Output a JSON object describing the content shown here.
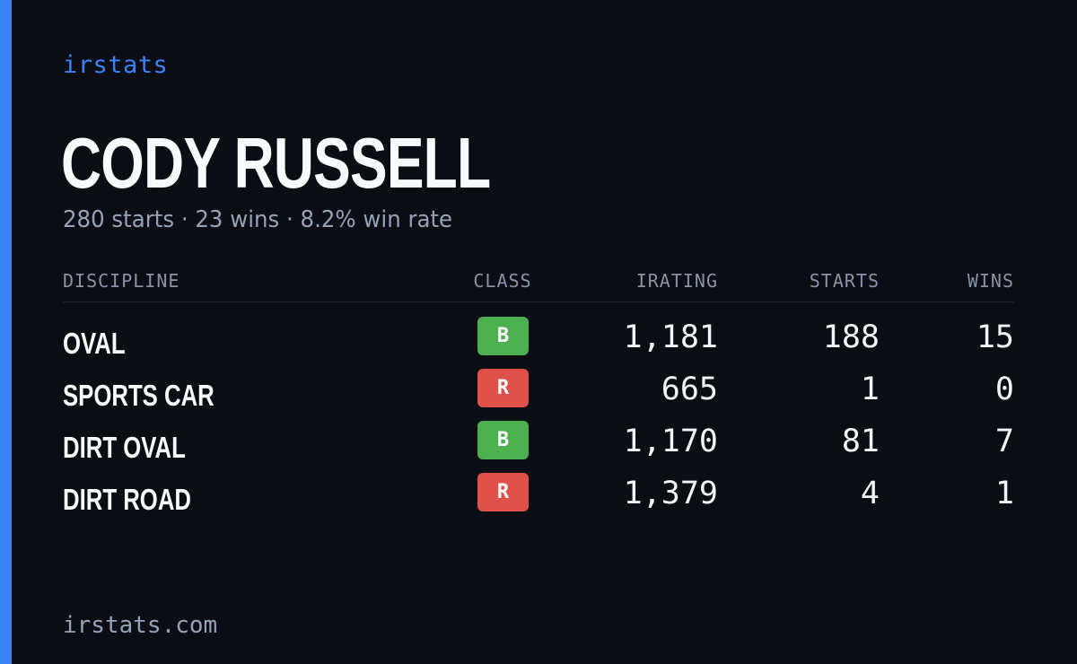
{
  "brand": "irstats",
  "driver": {
    "name": "CODY RUSSELL",
    "summary": "280 starts · 23 wins · 8.2% win rate"
  },
  "table": {
    "headers": {
      "discipline": "DISCIPLINE",
      "class": "CLASS",
      "irating": "IRATING",
      "starts": "STARTS",
      "wins": "WINS"
    },
    "rows": [
      {
        "discipline": "OVAL",
        "class": "B",
        "class_color": "#4caf50",
        "irating": "1,181",
        "starts": "188",
        "wins": "15"
      },
      {
        "discipline": "SPORTS CAR",
        "class": "R",
        "class_color": "#e0514c",
        "irating": "665",
        "starts": "1",
        "wins": "0"
      },
      {
        "discipline": "DIRT OVAL",
        "class": "B",
        "class_color": "#4caf50",
        "irating": "1,170",
        "starts": "81",
        "wins": "7"
      },
      {
        "discipline": "DIRT ROAD",
        "class": "R",
        "class_color": "#e0514c",
        "irating": "1,379",
        "starts": "4",
        "wins": "1"
      }
    ]
  },
  "footer": "irstats.com",
  "colors": {
    "background": "#0a0d14",
    "accent": "#3b82f6",
    "class_b": "#4caf50",
    "class_r": "#e0514c"
  }
}
